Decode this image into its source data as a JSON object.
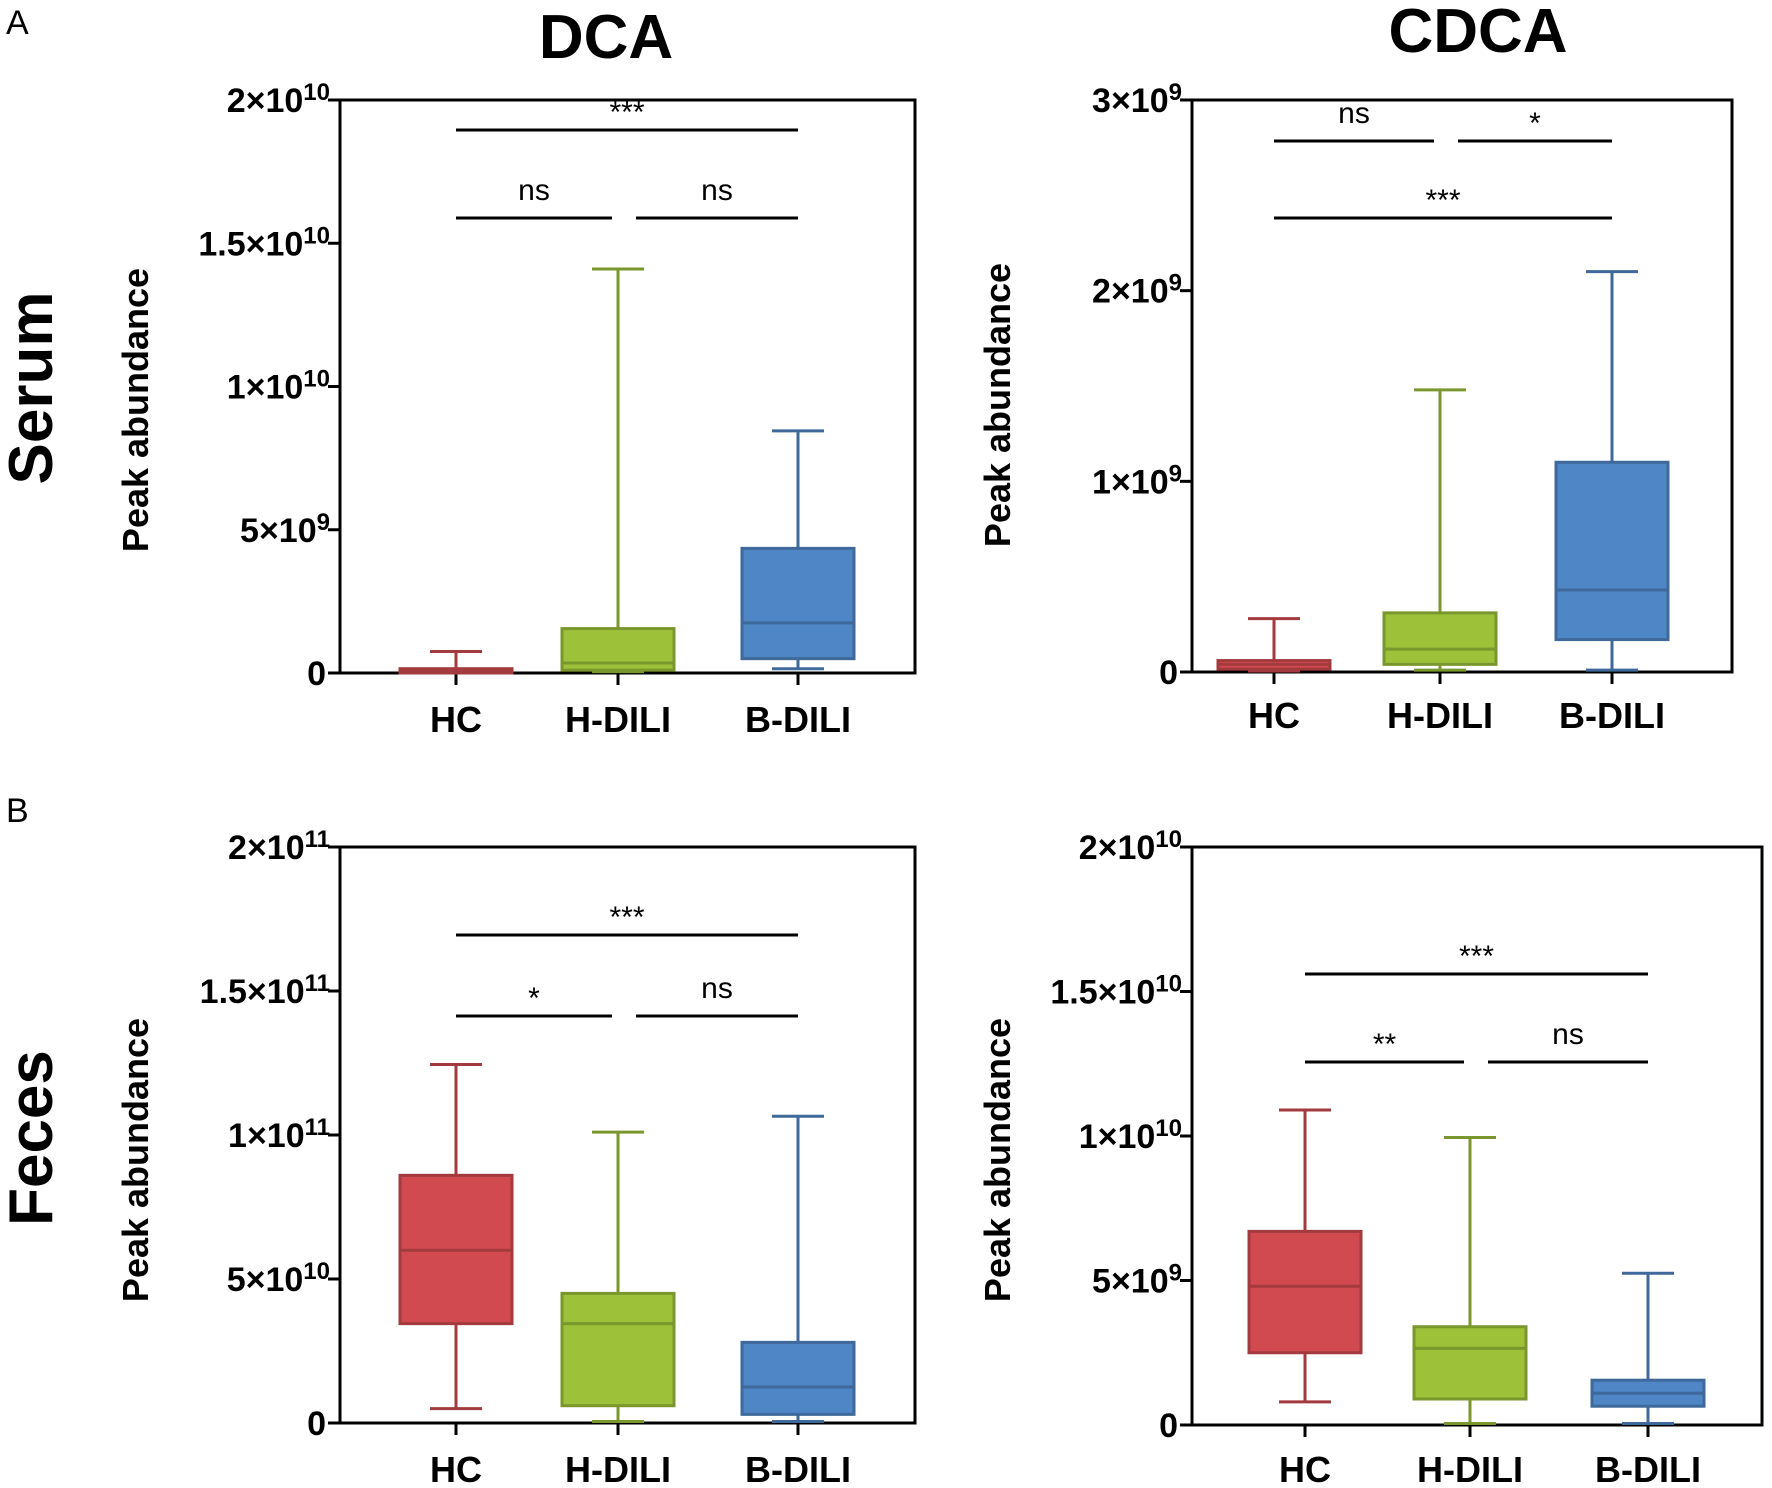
{
  "panel_labels": [
    "A",
    "B"
  ],
  "column_titles": [
    "DCA",
    "CDCA"
  ],
  "row_titles": [
    "Serum",
    "Feces"
  ],
  "colors": {
    "HC": "#d04a50",
    "H-DILI": "#9dc23a",
    "B-DILI": "#4f86c6"
  },
  "chart_data": [
    {
      "type": "box",
      "panel": "A",
      "title": "DCA",
      "row": "Serum",
      "ylabel": "Peak abundance",
      "categories": [
        "HC",
        "H-DILI",
        "B-DILI"
      ],
      "ylim": [
        0,
        20000000000
      ],
      "yticks": [
        {
          "value": 0,
          "mant": "0",
          "exp": ""
        },
        {
          "value": 5000000000,
          "mant": "5×10",
          "exp": "9"
        },
        {
          "value": 10000000000,
          "mant": "1×10",
          "exp": "10"
        },
        {
          "value": 15000000000,
          "mant": "1.5×10",
          "exp": "10"
        },
        {
          "value": 20000000000,
          "mant": "2×10",
          "exp": "10"
        }
      ],
      "boxes": [
        {
          "category": "HC",
          "min": 0,
          "q1": 0,
          "median": 50000000,
          "q3": 150000000,
          "max": 750000000
        },
        {
          "category": "H-DILI",
          "min": 50000000,
          "q1": 100000000,
          "median": 350000000,
          "q3": 1550000000,
          "max": 14100000000
        },
        {
          "category": "B-DILI",
          "min": 150000000,
          "q1": 500000000,
          "median": 1750000000,
          "q3": 4350000000,
          "max": 8450000000
        }
      ],
      "significance": [
        {
          "from": 0,
          "to": 1,
          "label": "ns",
          "level": 1
        },
        {
          "from": 1,
          "to": 2,
          "label": "ns",
          "level": 1
        },
        {
          "from": 0,
          "to": 2,
          "label": "***",
          "level": 2
        }
      ]
    },
    {
      "type": "box",
      "panel": "A",
      "title": "CDCA",
      "row": "Serum",
      "ylabel": "Peak abundance",
      "categories": [
        "HC",
        "H-DILI",
        "B-DILI"
      ],
      "ylim": [
        0,
        3000000000
      ],
      "yticks": [
        {
          "value": 0,
          "mant": "0",
          "exp": ""
        },
        {
          "value": 1000000000,
          "mant": "1×10",
          "exp": "9"
        },
        {
          "value": 2000000000,
          "mant": "2×10",
          "exp": "9"
        },
        {
          "value": 3000000000,
          "mant": "3×10",
          "exp": "9"
        }
      ],
      "boxes": [
        {
          "category": "HC",
          "min": 5000000,
          "q1": 15000000,
          "median": 40000000,
          "q3": 60000000,
          "max": 280000000
        },
        {
          "category": "H-DILI",
          "min": 10000000,
          "q1": 40000000,
          "median": 120000000,
          "q3": 310000000,
          "max": 1480000000
        },
        {
          "category": "B-DILI",
          "min": 10000000,
          "q1": 170000000,
          "median": 430000000,
          "q3": 1100000000,
          "max": 2100000000
        }
      ],
      "significance": [
        {
          "from": 0,
          "to": 2,
          "label": "***",
          "level": 1
        },
        {
          "from": 0,
          "to": 1,
          "label": "ns",
          "level": 2
        },
        {
          "from": 1,
          "to": 2,
          "label": "*",
          "level": 2
        }
      ]
    },
    {
      "type": "box",
      "panel": "B",
      "title": "DCA",
      "row": "Feces",
      "ylabel": "Peak abundance",
      "categories": [
        "HC",
        "H-DILI",
        "B-DILI"
      ],
      "ylim": [
        0,
        200000000000
      ],
      "yticks": [
        {
          "value": 0,
          "mant": "0",
          "exp": ""
        },
        {
          "value": 50000000000,
          "mant": "5×10",
          "exp": "10"
        },
        {
          "value": 100000000000,
          "mant": "1×10",
          "exp": "11"
        },
        {
          "value": 150000000000,
          "mant": "1.5×10",
          "exp": "11"
        },
        {
          "value": 200000000000,
          "mant": "2×10",
          "exp": "11"
        }
      ],
      "boxes": [
        {
          "category": "HC",
          "min": 5000000000,
          "q1": 34500000000,
          "median": 60000000000,
          "q3": 86000000000,
          "max": 124500000000
        },
        {
          "category": "H-DILI",
          "min": 500000000,
          "q1": 6000000000,
          "median": 34500000000,
          "q3": 45000000000,
          "max": 101000000000
        },
        {
          "category": "B-DILI",
          "min": 500000000,
          "q1": 3000000000,
          "median": 12500000000,
          "q3": 28000000000,
          "max": 106500000000
        }
      ],
      "significance": [
        {
          "from": 0,
          "to": 1,
          "label": "*",
          "level": 1
        },
        {
          "from": 1,
          "to": 2,
          "label": "ns",
          "level": 1
        },
        {
          "from": 0,
          "to": 2,
          "label": "***",
          "level": 2
        }
      ]
    },
    {
      "type": "box",
      "panel": "B",
      "title": "CDCA",
      "row": "Feces",
      "ylabel": "Peak abundance",
      "categories": [
        "HC",
        "H-DILI",
        "B-DILI"
      ],
      "ylim": [
        0,
        20000000000
      ],
      "yticks": [
        {
          "value": 0,
          "mant": "0",
          "exp": ""
        },
        {
          "value": 5000000000,
          "mant": "5×10",
          "exp": "9"
        },
        {
          "value": 10000000000,
          "mant": "1×10",
          "exp": "10"
        },
        {
          "value": 15000000000,
          "mant": "1.5×10",
          "exp": "10"
        },
        {
          "value": 20000000000,
          "mant": "2×10",
          "exp": "10"
        }
      ],
      "boxes": [
        {
          "category": "HC",
          "min": 800000000,
          "q1": 2500000000,
          "median": 4800000000,
          "q3": 6700000000,
          "max": 10900000000
        },
        {
          "category": "H-DILI",
          "min": 50000000,
          "q1": 900000000,
          "median": 2650000000,
          "q3": 3400000000,
          "max": 9950000000
        },
        {
          "category": "B-DILI",
          "min": 50000000,
          "q1": 650000000,
          "median": 1100000000,
          "q3": 1550000000,
          "max": 5250000000
        }
      ],
      "significance": [
        {
          "from": 0,
          "to": 1,
          "label": "**",
          "level": 1
        },
        {
          "from": 1,
          "to": 2,
          "label": "ns",
          "level": 1
        },
        {
          "from": 0,
          "to": 2,
          "label": "***",
          "level": 2
        }
      ]
    }
  ]
}
